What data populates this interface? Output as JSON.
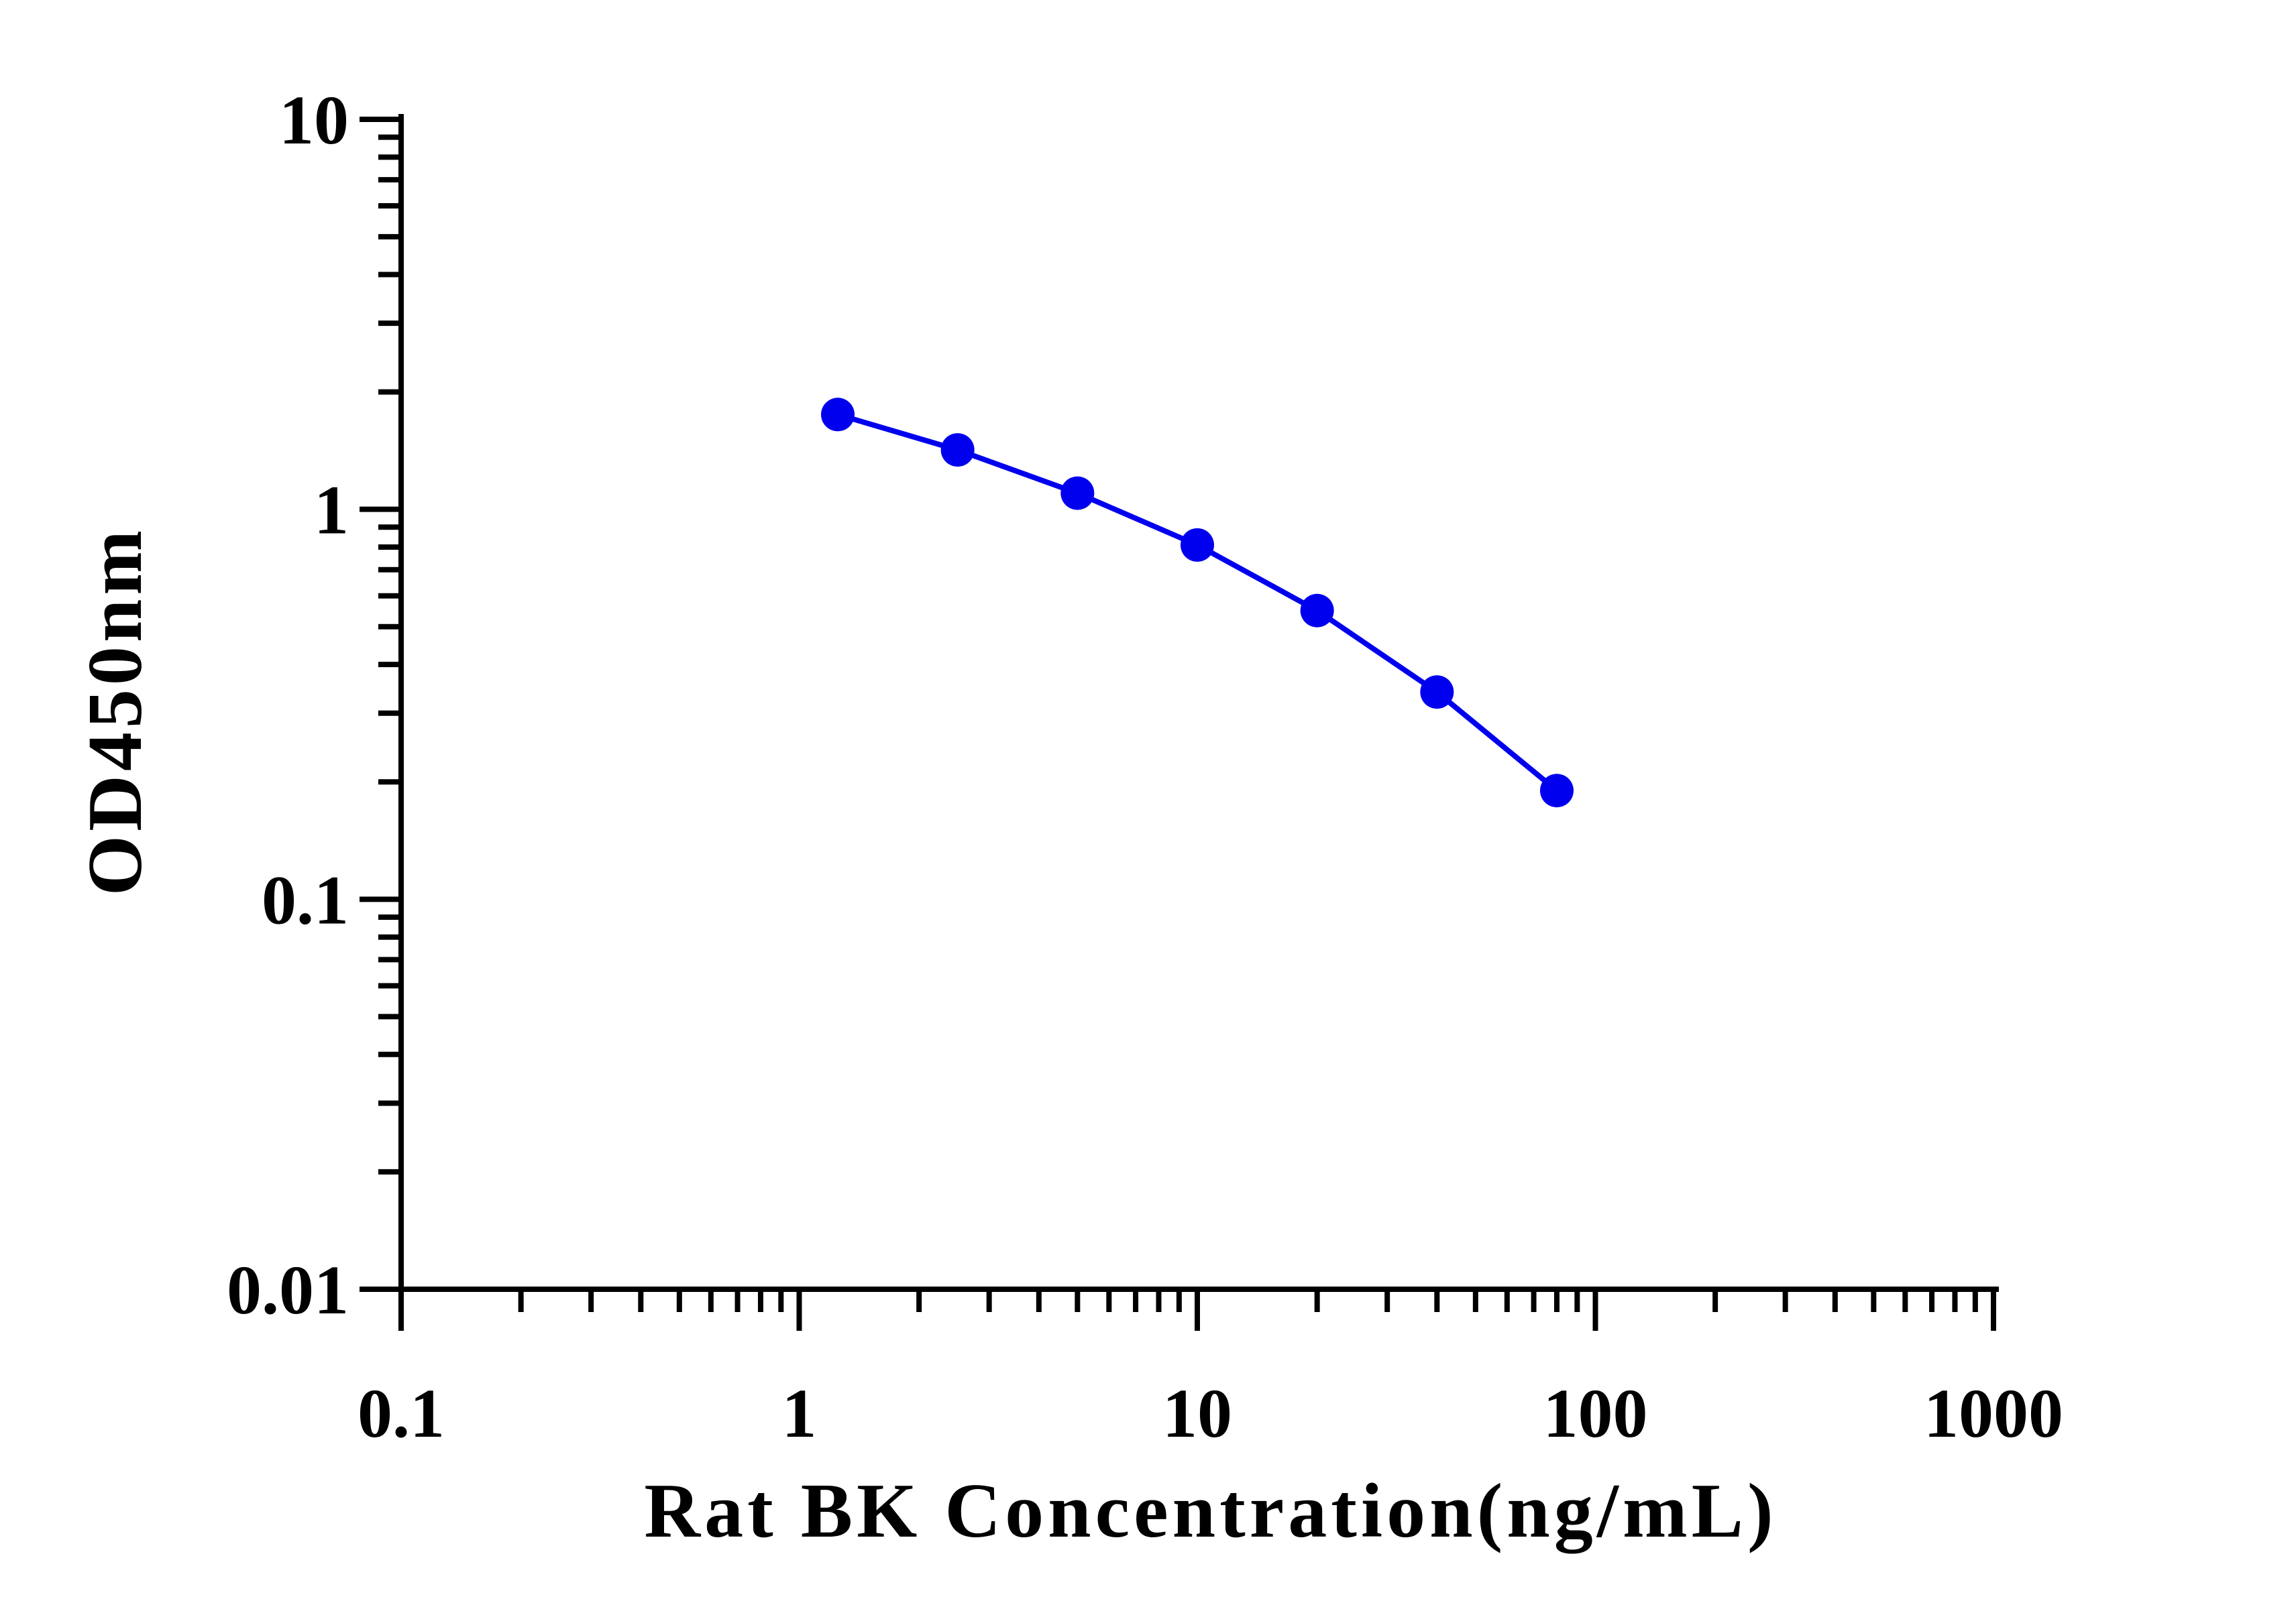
{
  "chart_data": {
    "type": "line",
    "title": "",
    "xlabel": "Rat BK Concentration(ng/mL)",
    "ylabel": "OD450nm",
    "xscale": "log",
    "yscale": "log",
    "xlim": [
      0.1,
      1000
    ],
    "ylim": [
      0.01,
      10
    ],
    "x_ticks": [
      0.1,
      1,
      10,
      100,
      1000
    ],
    "x_tick_labels": [
      "0.1",
      "1",
      "10",
      "100",
      "1000"
    ],
    "y_ticks": [
      0.01,
      0.1,
      1,
      10
    ],
    "y_tick_labels": [
      "0.01",
      "0.1",
      "1",
      "10"
    ],
    "grid": false,
    "legend": "none",
    "color": "#0000ee",
    "series": [
      {
        "x": [
          1.25,
          2.5,
          5,
          10,
          20,
          40,
          80
        ],
        "y": [
          1.75,
          1.42,
          1.1,
          0.81,
          0.55,
          0.34,
          0.19
        ]
      }
    ]
  }
}
